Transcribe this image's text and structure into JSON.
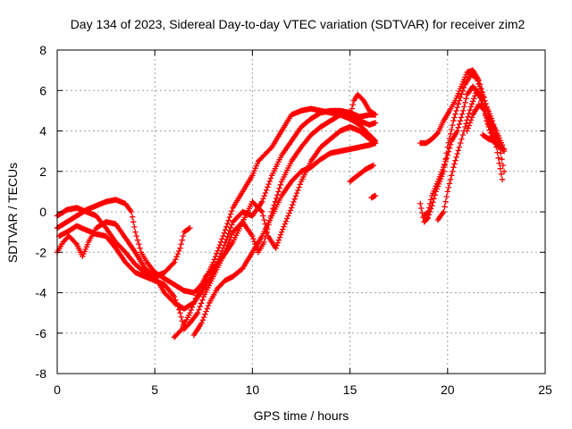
{
  "chart_data": {
    "type": "scatter",
    "title": "Day 134 of 2023, Sidereal Day-to-day VTEC variation (SDTVAR) for receiver zim2",
    "xlabel": "GPS time / hours",
    "ylabel": "SDTVAR / TECUs",
    "xlim": [
      0,
      25
    ],
    "ylim": [
      -8,
      8
    ],
    "x_ticks": [
      "0",
      "5",
      "10",
      "15",
      "20",
      "25"
    ],
    "y_ticks": [
      "-8",
      "-6",
      "-4",
      "-2",
      "0",
      "2",
      "4",
      "6",
      "8"
    ],
    "grid": true,
    "legend": "none",
    "marker": "+",
    "color": "#ff0000",
    "series": [
      {
        "points": [
          [
            0.0,
            -0.8
          ],
          [
            0.5,
            -0.5
          ],
          [
            1.0,
            -0.2
          ],
          [
            1.5,
            0.1
          ],
          [
            2.0,
            0.3
          ],
          [
            2.5,
            0.5
          ],
          [
            3.0,
            0.6
          ],
          [
            3.5,
            0.4
          ],
          [
            3.8,
            0.0
          ],
          [
            4.0,
            -1.0
          ],
          [
            4.3,
            -2.0
          ],
          [
            4.6,
            -2.5
          ],
          [
            5.0,
            -3.0
          ],
          [
            5.5,
            -3.3
          ],
          [
            6.0,
            -3.6
          ],
          [
            6.5,
            -3.9
          ],
          [
            7.0,
            -4.0
          ],
          [
            7.5,
            -3.5
          ],
          [
            8.0,
            -2.5
          ],
          [
            8.5,
            -1.2
          ],
          [
            9.0,
            0.2
          ],
          [
            9.5,
            1.0
          ],
          [
            10.0,
            1.8
          ],
          [
            10.3,
            2.5
          ],
          [
            10.6,
            2.8
          ],
          [
            11.0,
            3.2
          ],
          [
            11.5,
            4.0
          ],
          [
            12.0,
            4.8
          ],
          [
            12.5,
            5.0
          ],
          [
            13.0,
            5.1
          ],
          [
            13.5,
            5.0
          ],
          [
            14.0,
            4.9
          ],
          [
            14.5,
            4.8
          ],
          [
            15.0,
            4.6
          ],
          [
            15.5,
            4.3
          ],
          [
            16.0,
            3.8
          ],
          [
            16.3,
            3.5
          ]
        ]
      },
      {
        "points": [
          [
            0.0,
            -2.0
          ],
          [
            0.3,
            -1.5
          ],
          [
            0.6,
            -1.2
          ],
          [
            1.0,
            -1.6
          ],
          [
            1.3,
            -2.2
          ],
          [
            1.6,
            -1.5
          ],
          [
            2.0,
            -0.8
          ],
          [
            2.5,
            -0.5
          ],
          [
            3.0,
            -0.6
          ],
          [
            3.5,
            -1.3
          ],
          [
            4.0,
            -2.0
          ],
          [
            4.5,
            -2.8
          ],
          [
            5.0,
            -3.2
          ],
          [
            5.5,
            -3.0
          ],
          [
            6.0,
            -2.5
          ],
          [
            6.3,
            -1.8
          ],
          [
            6.5,
            -1.0
          ],
          [
            6.8,
            -0.8
          ]
        ]
      },
      {
        "points": [
          [
            0.0,
            -0.2
          ],
          [
            0.5,
            0.1
          ],
          [
            1.0,
            0.2
          ],
          [
            1.5,
            0.0
          ],
          [
            2.0,
            -0.2
          ],
          [
            2.5,
            -0.8
          ],
          [
            3.0,
            -1.5
          ],
          [
            3.5,
            -2.0
          ],
          [
            4.0,
            -2.6
          ],
          [
            4.5,
            -3.0
          ],
          [
            5.0,
            -3.2
          ],
          [
            5.5,
            -4.0
          ],
          [
            6.0,
            -4.5
          ],
          [
            6.5,
            -4.8
          ],
          [
            7.0,
            -4.5
          ],
          [
            7.5,
            -3.8
          ],
          [
            8.0,
            -3.0
          ],
          [
            8.5,
            -1.8
          ],
          [
            9.0,
            -0.5
          ],
          [
            9.5,
            0.0
          ],
          [
            10.0,
            -0.2
          ],
          [
            10.5,
            0.5
          ],
          [
            11.0,
            1.8
          ],
          [
            11.5,
            2.8
          ],
          [
            12.0,
            3.5
          ],
          [
            12.5,
            4.2
          ],
          [
            13.0,
            4.6
          ],
          [
            13.5,
            4.9
          ],
          [
            14.0,
            5.0
          ],
          [
            14.5,
            5.0
          ],
          [
            15.0,
            4.9
          ],
          [
            15.5,
            4.7
          ],
          [
            16.0,
            4.8
          ],
          [
            16.3,
            4.8
          ]
        ]
      },
      {
        "points": [
          [
            0.1,
            -1.2
          ],
          [
            0.5,
            -1.0
          ],
          [
            1.0,
            -0.7
          ],
          [
            1.5,
            -0.9
          ],
          [
            2.0,
            -1.1
          ],
          [
            2.5,
            -1.2
          ],
          [
            3.0,
            -1.8
          ],
          [
            3.5,
            -2.5
          ],
          [
            4.0,
            -3.0
          ],
          [
            4.5,
            -3.2
          ],
          [
            5.0,
            -3.4
          ],
          [
            5.5,
            -3.6
          ],
          [
            6.0,
            -4.2
          ],
          [
            6.3,
            -5.0
          ],
          [
            6.5,
            -5.8
          ],
          [
            6.8,
            -5.5
          ],
          [
            7.2,
            -5.0
          ],
          [
            7.5,
            -4.2
          ],
          [
            8.0,
            -3.2
          ],
          [
            8.5,
            -2.2
          ],
          [
            9.0,
            -1.0
          ],
          [
            9.5,
            -0.5
          ],
          [
            10.0,
            -1.2
          ],
          [
            10.3,
            -2.0
          ],
          [
            10.6,
            -1.5
          ],
          [
            11.0,
            0.0
          ],
          [
            11.5,
            1.5
          ],
          [
            12.0,
            2.5
          ],
          [
            12.5,
            3.2
          ],
          [
            13.0,
            3.8
          ],
          [
            13.5,
            4.2
          ],
          [
            14.0,
            4.5
          ],
          [
            14.5,
            4.8
          ],
          [
            15.0,
            4.7
          ],
          [
            15.5,
            4.5
          ],
          [
            16.0,
            4.3
          ],
          [
            16.3,
            4.4
          ]
        ]
      },
      {
        "points": [
          [
            6.0,
            -6.2
          ],
          [
            6.4,
            -5.8
          ],
          [
            6.8,
            -5.0
          ],
          [
            7.2,
            -4.0
          ],
          [
            7.6,
            -3.2
          ],
          [
            8.0,
            -2.8
          ],
          [
            8.5,
            -2.2
          ],
          [
            9.0,
            -1.5
          ],
          [
            9.5,
            -0.5
          ],
          [
            10.0,
            0.5
          ],
          [
            10.5,
            0.0
          ],
          [
            10.8,
            -1.2
          ],
          [
            11.2,
            -1.8
          ],
          [
            11.5,
            -1.0
          ],
          [
            12.0,
            0.2
          ],
          [
            12.5,
            1.5
          ],
          [
            13.0,
            2.5
          ],
          [
            13.5,
            3.2
          ],
          [
            14.0,
            3.6
          ],
          [
            14.5,
            4.0
          ],
          [
            15.0,
            4.2
          ],
          [
            15.5,
            4.0
          ],
          [
            16.0,
            3.6
          ],
          [
            16.3,
            3.4
          ]
        ]
      },
      {
        "points": [
          [
            7.0,
            -6.1
          ],
          [
            7.4,
            -5.5
          ],
          [
            7.8,
            -4.5
          ],
          [
            8.2,
            -3.8
          ],
          [
            8.6,
            -3.4
          ],
          [
            9.0,
            -3.2
          ],
          [
            9.5,
            -2.8
          ],
          [
            10.0,
            -2.0
          ],
          [
            10.5,
            -1.2
          ],
          [
            11.0,
            -0.2
          ],
          [
            11.5,
            0.8
          ],
          [
            12.0,
            1.5
          ],
          [
            12.5,
            2.0
          ],
          [
            13.0,
            2.2
          ],
          [
            13.5,
            2.6
          ],
          [
            14.0,
            2.9
          ],
          [
            14.5,
            3.0
          ],
          [
            15.0,
            3.1
          ],
          [
            15.5,
            3.2
          ],
          [
            16.0,
            3.3
          ],
          [
            16.3,
            3.4
          ]
        ]
      },
      {
        "points": [
          [
            15.0,
            1.5
          ],
          [
            15.4,
            1.8
          ],
          [
            15.8,
            2.1
          ],
          [
            16.2,
            2.3
          ]
        ]
      },
      {
        "points": [
          [
            15.0,
            4.7
          ],
          [
            15.2,
            5.5
          ],
          [
            15.4,
            5.8
          ],
          [
            15.7,
            5.5
          ],
          [
            16.0,
            5.0
          ],
          [
            16.3,
            4.8
          ]
        ]
      },
      {
        "points": [
          [
            16.1,
            0.7
          ],
          [
            16.3,
            0.8
          ]
        ]
      },
      {
        "points": [
          [
            18.6,
            0.4
          ],
          [
            18.8,
            -0.5
          ],
          [
            19.0,
            -0.3
          ],
          [
            19.2,
            0.3
          ],
          [
            19.4,
            1.0
          ],
          [
            19.6,
            1.5
          ],
          [
            19.8,
            2.0
          ],
          [
            20.0,
            3.2
          ],
          [
            20.3,
            4.5
          ],
          [
            20.6,
            5.5
          ],
          [
            20.9,
            6.3
          ],
          [
            21.2,
            6.8
          ],
          [
            21.5,
            6.6
          ],
          [
            21.8,
            5.8
          ],
          [
            22.0,
            5.2
          ],
          [
            22.3,
            4.5
          ],
          [
            22.6,
            3.5
          ],
          [
            22.9,
            2.0
          ]
        ]
      },
      {
        "points": [
          [
            18.6,
            3.4
          ],
          [
            18.9,
            3.4
          ],
          [
            19.2,
            3.6
          ],
          [
            19.5,
            3.9
          ],
          [
            19.8,
            4.5
          ],
          [
            20.1,
            5.0
          ],
          [
            20.4,
            5.5
          ],
          [
            20.7,
            6.2
          ],
          [
            21.0,
            6.9
          ],
          [
            21.3,
            7.0
          ],
          [
            21.6,
            6.5
          ],
          [
            21.9,
            5.5
          ],
          [
            22.2,
            4.5
          ],
          [
            22.5,
            4.0
          ],
          [
            22.8,
            3.3
          ]
        ]
      },
      {
        "points": [
          [
            18.8,
            -0.2
          ],
          [
            19.0,
            0.0
          ],
          [
            19.2,
            0.8
          ],
          [
            19.5,
            1.5
          ],
          [
            19.8,
            2.2
          ],
          [
            20.0,
            2.8
          ],
          [
            20.2,
            3.5
          ],
          [
            20.5,
            4.0
          ],
          [
            20.8,
            5.0
          ],
          [
            21.0,
            5.8
          ],
          [
            21.3,
            6.2
          ],
          [
            21.6,
            5.8
          ],
          [
            21.9,
            5.0
          ],
          [
            22.2,
            4.2
          ],
          [
            22.5,
            3.2
          ],
          [
            22.8,
            1.6
          ]
        ]
      },
      {
        "points": [
          [
            19.5,
            -0.4
          ],
          [
            19.8,
            0.0
          ],
          [
            20.0,
            1.0
          ],
          [
            20.3,
            2.2
          ],
          [
            20.6,
            3.2
          ],
          [
            20.9,
            4.2
          ],
          [
            21.2,
            5.2
          ],
          [
            21.5,
            6.0
          ],
          [
            21.8,
            5.5
          ],
          [
            22.0,
            4.5
          ],
          [
            22.3,
            3.6
          ],
          [
            22.6,
            3.2
          ],
          [
            22.9,
            3.1
          ]
        ]
      },
      {
        "points": [
          [
            21.0,
            4.0
          ],
          [
            21.3,
            4.8
          ],
          [
            21.6,
            5.3
          ],
          [
            21.9,
            5.0
          ],
          [
            22.1,
            4.3
          ],
          [
            22.4,
            3.8
          ],
          [
            22.7,
            3.3
          ]
        ]
      },
      {
        "points": [
          [
            21.8,
            3.8
          ],
          [
            22.1,
            3.6
          ],
          [
            22.4,
            3.5
          ],
          [
            22.7,
            3.3
          ],
          [
            22.9,
            3.0
          ]
        ]
      }
    ]
  }
}
